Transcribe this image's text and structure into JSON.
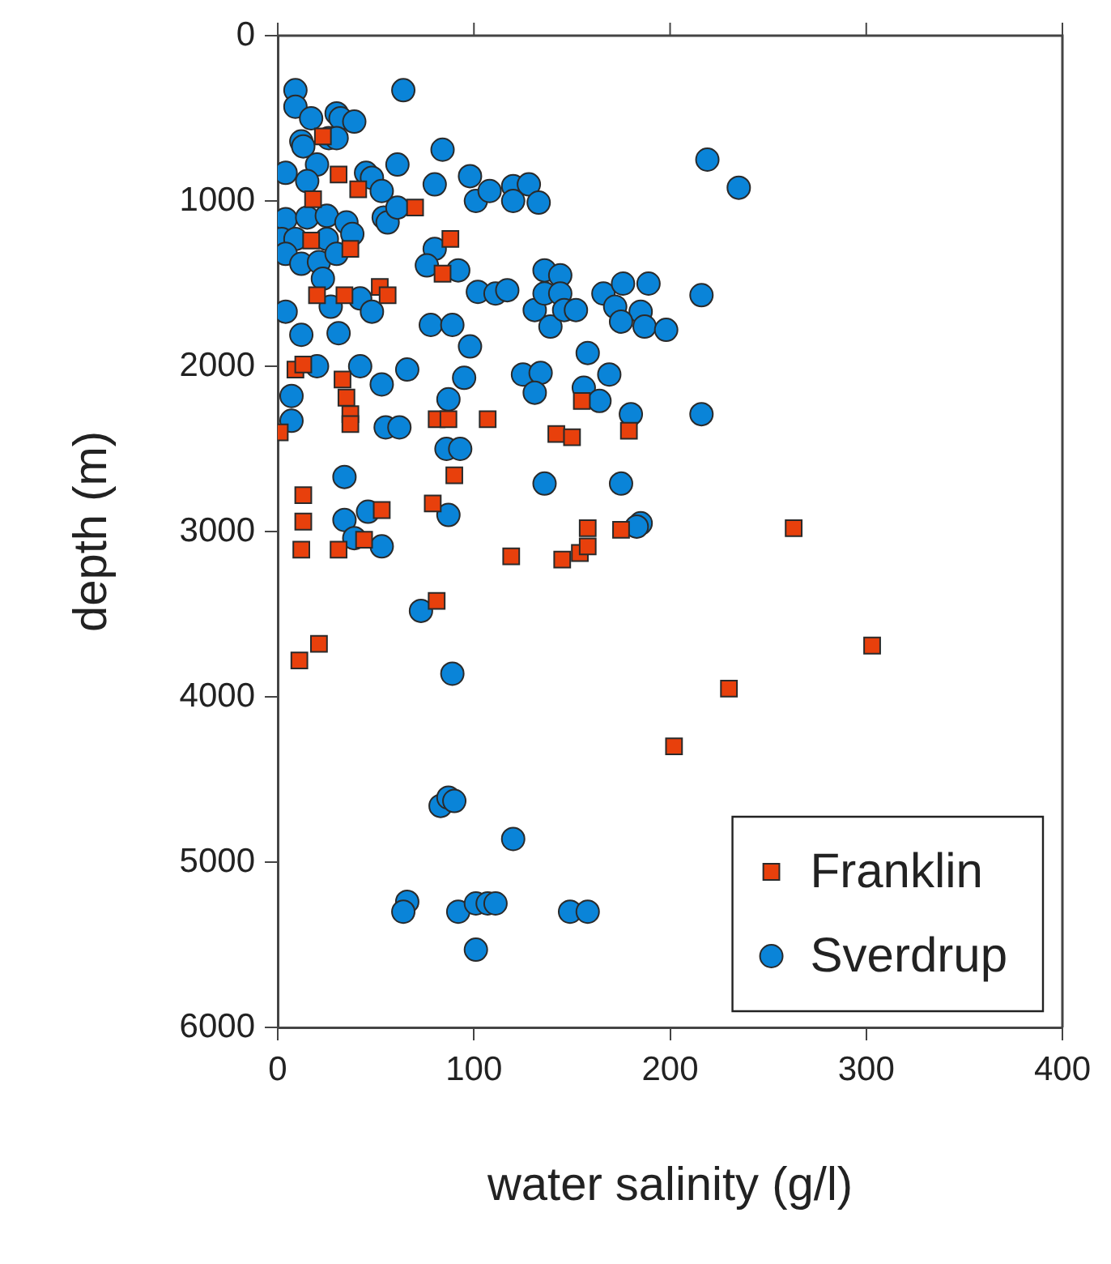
{
  "chart_data": {
    "type": "scatter",
    "xlabel": "water salinity (g/l)",
    "ylabel": "depth (m)",
    "xlim": [
      0,
      400
    ],
    "xticks": [
      0,
      100,
      200,
      300,
      400
    ],
    "ylim": [
      6000,
      0
    ],
    "yticks": [
      0,
      1000,
      2000,
      3000,
      4000,
      5000,
      6000
    ],
    "legend": "bottom right",
    "series": [
      {
        "name": "Franklin",
        "color": "#e8400c",
        "marker": "square",
        "x": [
          23,
          31,
          41,
          18,
          70,
          17,
          37,
          88,
          84,
          20,
          34,
          52,
          56,
          9,
          13,
          33,
          35,
          37,
          37,
          1,
          81,
          87,
          107,
          142,
          150,
          155,
          179,
          90,
          13,
          13,
          12,
          31,
          44,
          53,
          79,
          81,
          21,
          11,
          119,
          145,
          154,
          158,
          158,
          175,
          263,
          303,
          230,
          202
        ],
        "values": [
          610,
          840,
          930,
          990,
          1040,
          1240,
          1290,
          1230,
          1440,
          1570,
          1570,
          1520,
          1570,
          2020,
          1990,
          2080,
          2190,
          2290,
          2350,
          2400,
          2320,
          2320,
          2320,
          2410,
          2430,
          2210,
          2390,
          2660,
          2780,
          2940,
          3110,
          3110,
          3050,
          2870,
          2830,
          3420,
          3680,
          3780,
          3150,
          3170,
          3130,
          3090,
          2980,
          2990,
          2980,
          3690,
          3950,
          4300
        ]
      },
      {
        "name": "Sverdrup",
        "color": "#0a84d8",
        "marker": "circle",
        "x": [
          9,
          9,
          17,
          30,
          32,
          39,
          12,
          13,
          26,
          30,
          64,
          84,
          61,
          20,
          4,
          15,
          45,
          48,
          53,
          80,
          98,
          101,
          108,
          120,
          120,
          128,
          133,
          4,
          15,
          25,
          35,
          38,
          54,
          56,
          61,
          2,
          9,
          25,
          4,
          12,
          21,
          30,
          23,
          80,
          76,
          92,
          102,
          111,
          117,
          131,
          136,
          144,
          136,
          144,
          139,
          146,
          152,
          166,
          172,
          176,
          185,
          187,
          175,
          189,
          4,
          12,
          31,
          27,
          42,
          48,
          78,
          89,
          98,
          158,
          66,
          42,
          20,
          95,
          125,
          134,
          169,
          198,
          219,
          235,
          216,
          7,
          7,
          53,
          87,
          131,
          156,
          164,
          180,
          55,
          62,
          86,
          93,
          34,
          136,
          175,
          46,
          34,
          87,
          39,
          53,
          185,
          183,
          73,
          89,
          216,
          83,
          87,
          90,
          120,
          66,
          64,
          92,
          101,
          107,
          111,
          149,
          158,
          101
        ],
        "values": [
          330,
          430,
          500,
          470,
          500,
          520,
          640,
          670,
          620,
          620,
          330,
          690,
          780,
          780,
          830,
          880,
          830,
          860,
          940,
          900,
          850,
          1000,
          940,
          910,
          1000,
          900,
          1010,
          1110,
          1100,
          1090,
          1130,
          1200,
          1100,
          1130,
          1040,
          1230,
          1230,
          1230,
          1320,
          1380,
          1370,
          1320,
          1470,
          1290,
          1390,
          1420,
          1550,
          1560,
          1540,
          1660,
          1420,
          1450,
          1560,
          1560,
          1760,
          1660,
          1660,
          1560,
          1640,
          1500,
          1670,
          1760,
          1730,
          1500,
          1670,
          1810,
          1800,
          1640,
          1590,
          1670,
          1750,
          1750,
          1880,
          1920,
          2020,
          2000,
          2000,
          2070,
          2050,
          2040,
          2050,
          1780,
          750,
          920,
          1570,
          2180,
          2330,
          2110,
          2200,
          2160,
          2130,
          2210,
          2290,
          2370,
          2370,
          2500,
          2500,
          2670,
          2710,
          2710,
          2880,
          2930,
          2900,
          3040,
          3090,
          2950,
          2970,
          3480,
          3860,
          2290,
          4660,
          4610,
          4630,
          4860,
          5240,
          5300,
          5300,
          5250,
          5250,
          5250,
          5300,
          5300,
          5530
        ]
      }
    ]
  }
}
